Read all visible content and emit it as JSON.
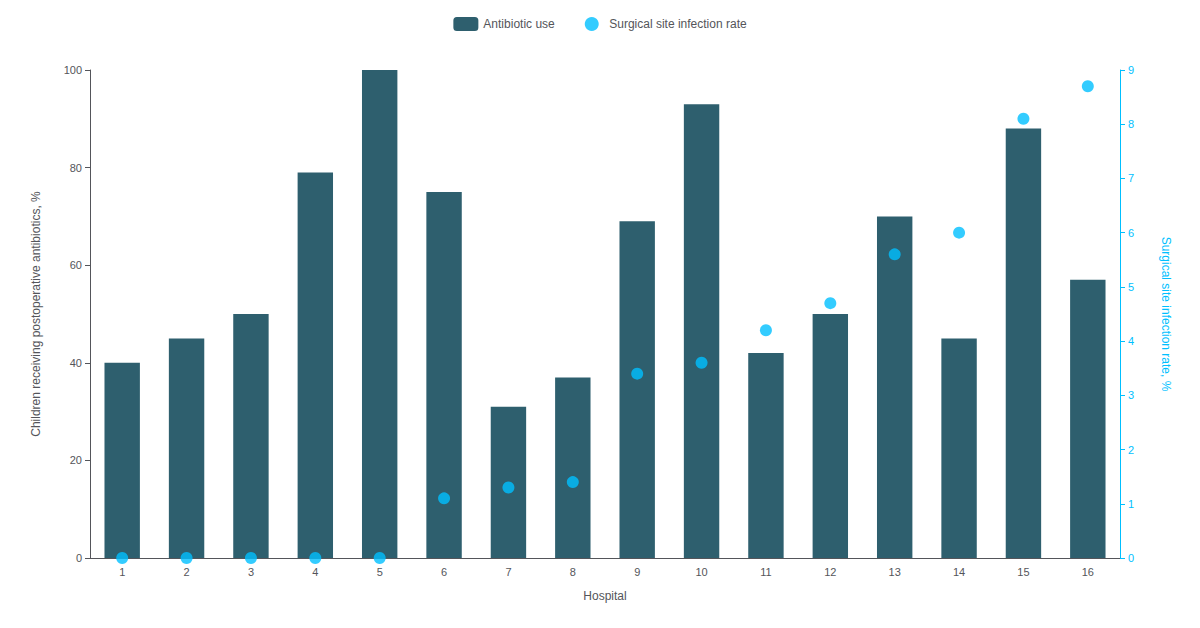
{
  "chart_data": {
    "type": "bar",
    "xlabel": "Hospital",
    "ylabel": "Children receiving postoperative antibiotics, %",
    "y2label": "Surgical site infection rate, %",
    "categories": [
      "1",
      "2",
      "3",
      "4",
      "5",
      "6",
      "7",
      "8",
      "9",
      "10",
      "11",
      "12",
      "13",
      "14",
      "15",
      "16"
    ],
    "series": [
      {
        "name": "Antibiotic use",
        "type": "bar",
        "color": "#2E5F6E",
        "values": [
          40,
          45,
          50,
          79,
          100,
          75,
          31,
          37,
          69,
          93,
          42,
          50,
          70,
          45,
          88,
          57
        ]
      },
      {
        "name": "Surgical site infection rate",
        "type": "scatter",
        "color": "#00BFFF",
        "axis": "y2",
        "values": [
          0.0,
          0.0,
          0.0,
          0.0,
          0.0,
          1.1,
          1.3,
          1.4,
          3.4,
          3.6,
          4.2,
          4.7,
          5.6,
          6.0,
          8.1,
          8.7
        ]
      }
    ],
    "ylim": [
      0,
      100
    ],
    "yticks": [
      0,
      20,
      40,
      60,
      80,
      100
    ],
    "y2lim": [
      0,
      9
    ],
    "y2ticks": [
      0,
      1,
      2,
      3,
      4,
      5,
      6,
      7,
      8,
      9
    ],
    "grid": false,
    "legend": "top"
  }
}
